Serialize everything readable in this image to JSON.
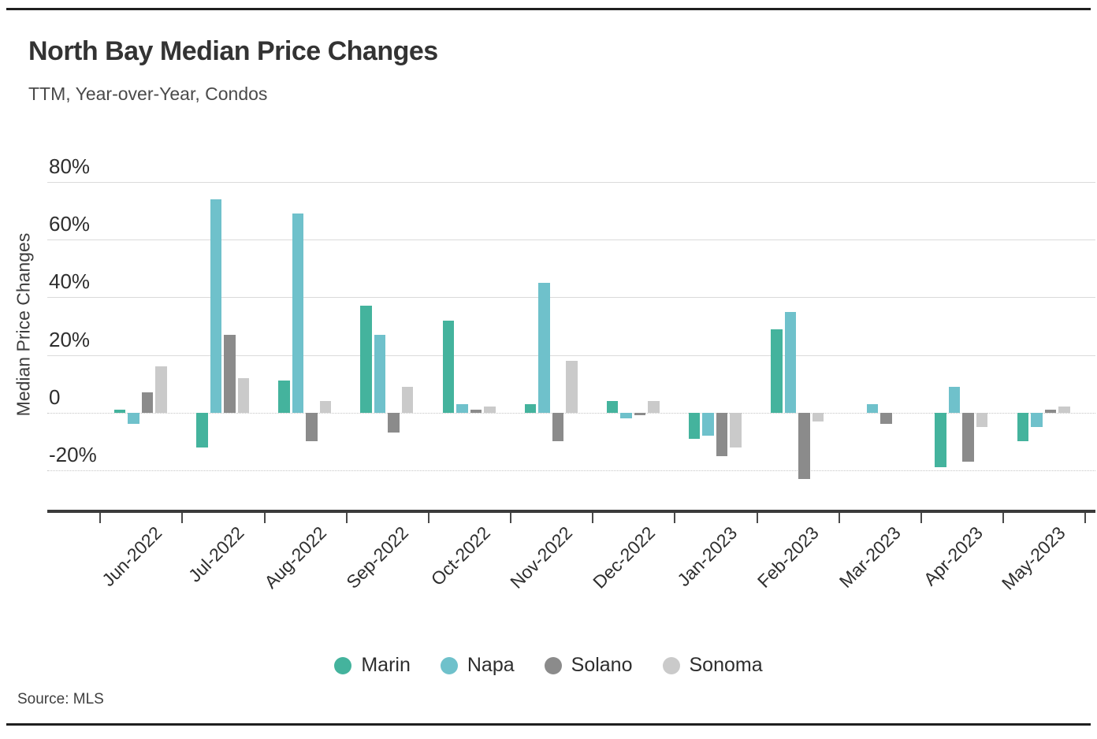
{
  "header": {
    "title": "North Bay Median Price Changes",
    "subtitle": "TTM, Year-over-Year, Condos"
  },
  "footer": {
    "source_label": "Source:",
    "source_value": "MLS"
  },
  "chart_data": {
    "type": "bar",
    "title": "North Bay Median Price Changes",
    "subtitle": "TTM, Year-over-Year, Condos",
    "xlabel": "",
    "ylabel": "Median Price Changes",
    "ylim": [
      -34,
      90
    ],
    "grid": "horizontal",
    "legend_position": "bottom",
    "value_unit": "%",
    "yticks": [
      {
        "value": 80,
        "label": "80%"
      },
      {
        "value": 60,
        "label": "60%"
      },
      {
        "value": 40,
        "label": "40%"
      },
      {
        "value": 20,
        "label": "20%"
      },
      {
        "value": 0,
        "label": "0"
      },
      {
        "value": -20,
        "label": "-20%"
      }
    ],
    "categories": [
      "Jun-2022",
      "Jul-2022",
      "Aug-2022",
      "Sep-2022",
      "Oct-2022",
      "Nov-2022",
      "Dec-2022",
      "Jan-2023",
      "Feb-2023",
      "Mar-2023",
      "Apr-2023",
      "May-2023"
    ],
    "series": [
      {
        "name": "Marin",
        "color": "#44b39d",
        "values": [
          1,
          -12,
          11,
          37,
          32,
          3,
          4,
          -9,
          29,
          0,
          -19,
          -10
        ]
      },
      {
        "name": "Napa",
        "color": "#6fc1cb",
        "values": [
          -4,
          74,
          69,
          27,
          3,
          45,
          -2,
          -8,
          35,
          3,
          9,
          -5
        ]
      },
      {
        "name": "Solano",
        "color": "#8b8b8b",
        "values": [
          7,
          27,
          -10,
          -7,
          1,
          -10,
          -1,
          -15,
          -23,
          -4,
          -17,
          1
        ]
      },
      {
        "name": "Sonoma",
        "color": "#cacaca",
        "values": [
          16,
          12,
          4,
          9,
          2,
          18,
          4,
          -12,
          -3,
          0,
          -5,
          2
        ]
      }
    ]
  }
}
